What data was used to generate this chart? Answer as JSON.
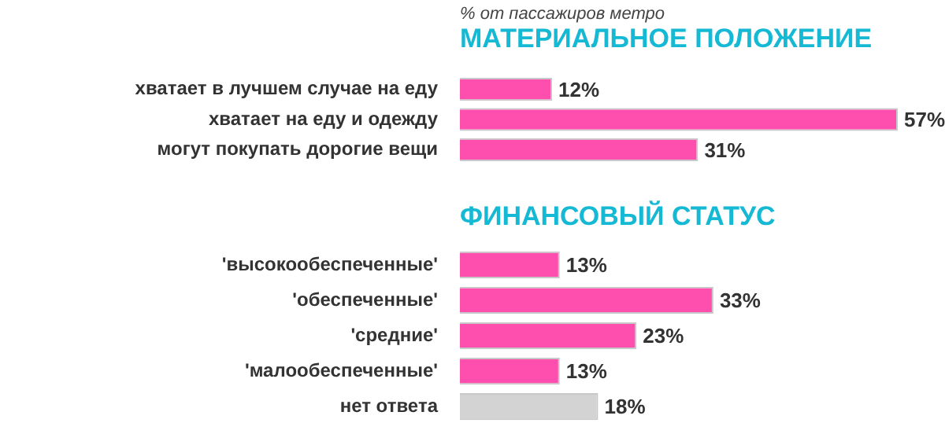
{
  "chart_data": [
    {
      "type": "bar",
      "orientation": "horizontal",
      "subtitle": "% от пассажиров метро",
      "title": "МАТЕРИАЛЬНОЕ ПОЛОЖЕНИЕ",
      "categories": [
        "хватает в лучшем случае на еду",
        "хватает на еду и одежду",
        "могут покупать дорогие вещи"
      ],
      "values": [
        12,
        57,
        31
      ],
      "colors": [
        "#ff4fae",
        "#ff4fae",
        "#ff4fae"
      ],
      "value_labels": [
        "12%",
        "57%",
        "31%"
      ]
    },
    {
      "type": "bar",
      "orientation": "horizontal",
      "title": "ФИНАНСОВЫЙ СТАТУС",
      "categories": [
        "'высокообеспеченные'",
        "'обеспеченные'",
        "'средние'",
        "'малообеспеченные'",
        "нет ответа"
      ],
      "values": [
        13,
        33,
        23,
        13,
        18
      ],
      "colors": [
        "#ff4fae",
        "#ff4fae",
        "#ff4fae",
        "#ff4fae",
        "#d3d3d3"
      ],
      "value_labels": [
        "13%",
        "33%",
        "23%",
        "13%",
        "18%"
      ]
    }
  ]
}
